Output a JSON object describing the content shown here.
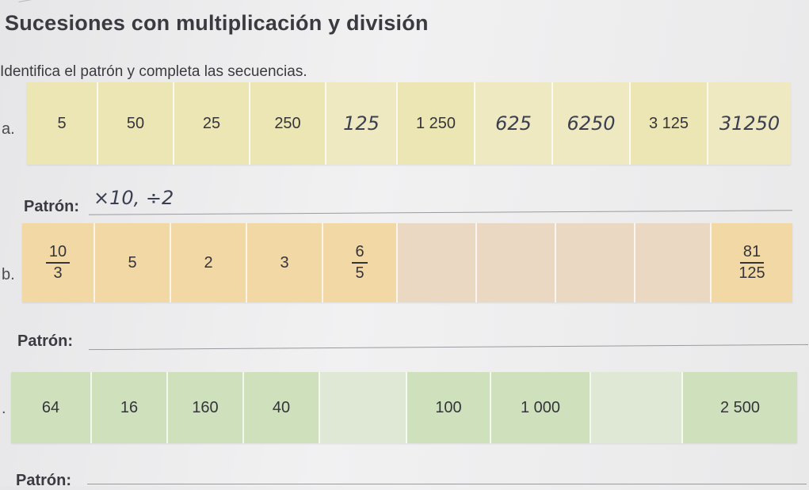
{
  "title": "Sucesiones con multiplicación y división",
  "instruction": "Identifica el patrón y completa las secuencias.",
  "colors": {
    "row_a": "#ece6b4",
    "row_a_blank": "#efe9c2",
    "row_b": "#f2d8a4",
    "row_b_blank": "#ead8c2",
    "row_c": "#cfe0bd",
    "row_c_blank": "#dfe8d4",
    "handwriting": "#3b3f52"
  },
  "pattern_label": "Patrón:",
  "sequence_a": {
    "marker": "a.",
    "cells": [
      {
        "text": "5",
        "type": "printed"
      },
      {
        "text": "50",
        "type": "printed"
      },
      {
        "text": "25",
        "type": "printed"
      },
      {
        "text": "250",
        "type": "printed"
      },
      {
        "text": "125",
        "type": "handwritten"
      },
      {
        "text": "1 250",
        "type": "printed"
      },
      {
        "text": "625",
        "type": "handwritten"
      },
      {
        "text": "6250",
        "type": "handwritten"
      },
      {
        "text": "3 125",
        "type": "printed"
      },
      {
        "text": "31250",
        "type": "handwritten"
      }
    ],
    "pattern_answer": "×10, ÷2"
  },
  "sequence_b": {
    "marker": "b.",
    "cells": [
      {
        "num": "10",
        "den": "3",
        "type": "fraction"
      },
      {
        "text": "5",
        "type": "printed"
      },
      {
        "text": "2",
        "type": "printed"
      },
      {
        "text": "3",
        "type": "printed"
      },
      {
        "num": "6",
        "den": "5",
        "type": "fraction"
      },
      {
        "text": "",
        "type": "blank"
      },
      {
        "text": "",
        "type": "blank"
      },
      {
        "text": "",
        "type": "blank"
      },
      {
        "text": "",
        "type": "blank"
      },
      {
        "num": "81",
        "den": "125",
        "type": "fraction"
      }
    ]
  },
  "sequence_c": {
    "marker": ".",
    "cells": [
      {
        "text": "64",
        "type": "printed"
      },
      {
        "text": "16",
        "type": "printed"
      },
      {
        "text": "160",
        "type": "printed"
      },
      {
        "text": "40",
        "type": "printed"
      },
      {
        "text": "",
        "type": "blank"
      },
      {
        "text": "100",
        "type": "printed"
      },
      {
        "text": "1 000",
        "type": "printed"
      },
      {
        "text": "",
        "type": "blank"
      },
      {
        "text": "2 500",
        "type": "printed"
      }
    ]
  }
}
